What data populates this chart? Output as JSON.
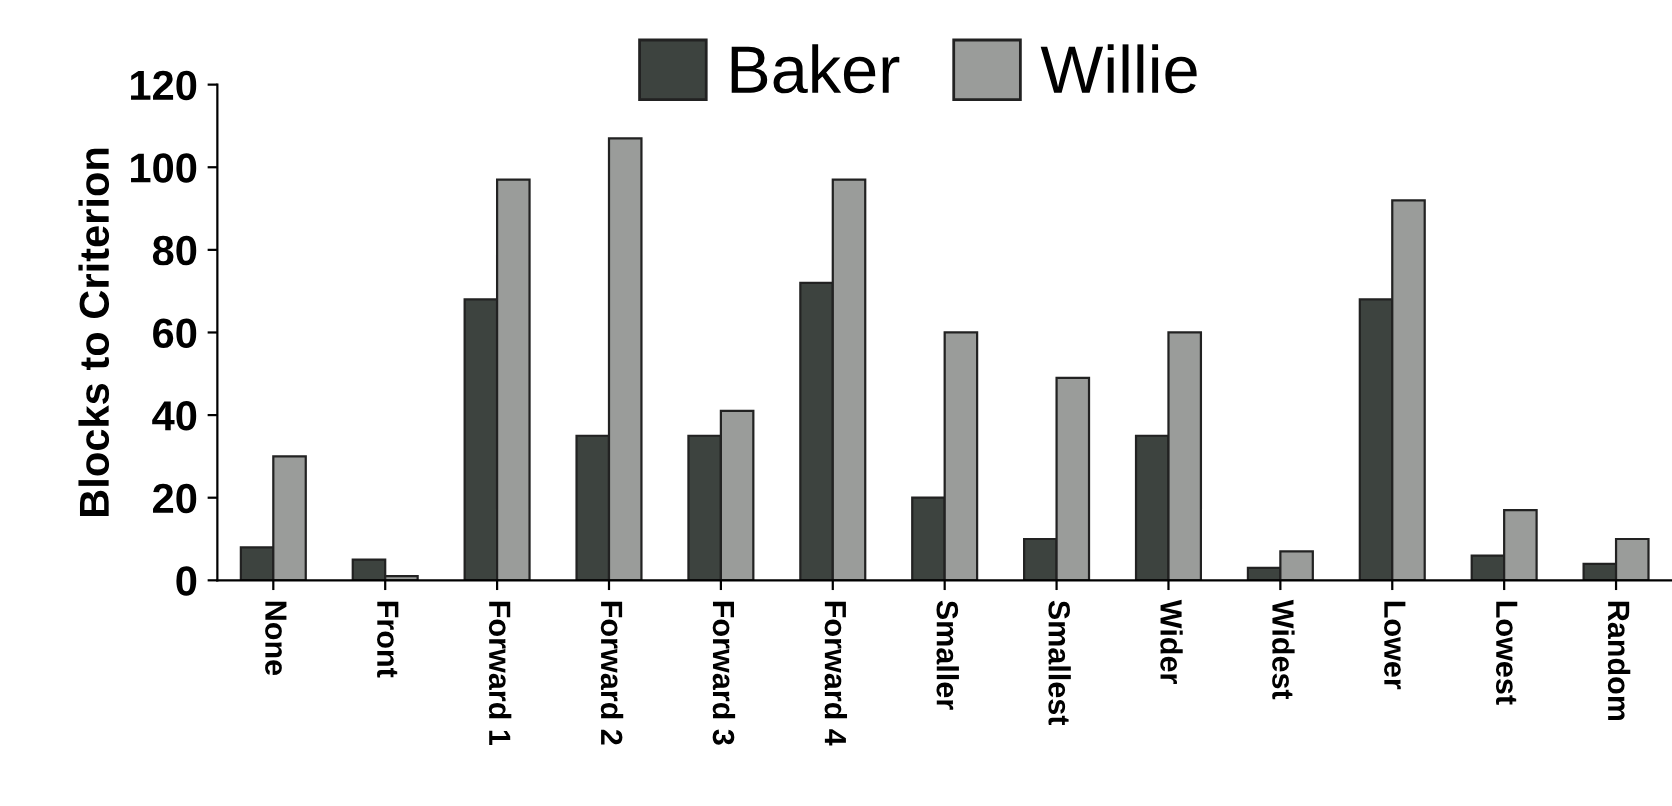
{
  "chart_data": {
    "type": "bar",
    "ylabel": "Blocks to Criterion",
    "categories": [
      "None",
      "Front",
      "Forward 1",
      "Forward 2",
      "Forward 3",
      "Forward 4",
      "Smaller",
      "Smallest",
      "Wider",
      "Widest",
      "Lower",
      "Lowest",
      "Random"
    ],
    "series": [
      {
        "name": "Baker",
        "color": "#3d433f",
        "values": [
          8,
          5,
          68,
          35,
          35,
          72,
          20,
          10,
          35,
          3,
          68,
          6,
          4
        ]
      },
      {
        "name": "Willie",
        "color": "#9a9c9a",
        "values": [
          30,
          1,
          97,
          107,
          41,
          97,
          60,
          49,
          60,
          7,
          92,
          17,
          10
        ]
      }
    ],
    "ylim": [
      0,
      120
    ],
    "yticks": [
      0,
      20,
      40,
      60,
      80,
      100,
      120
    ],
    "grid": false,
    "legend": "top"
  }
}
